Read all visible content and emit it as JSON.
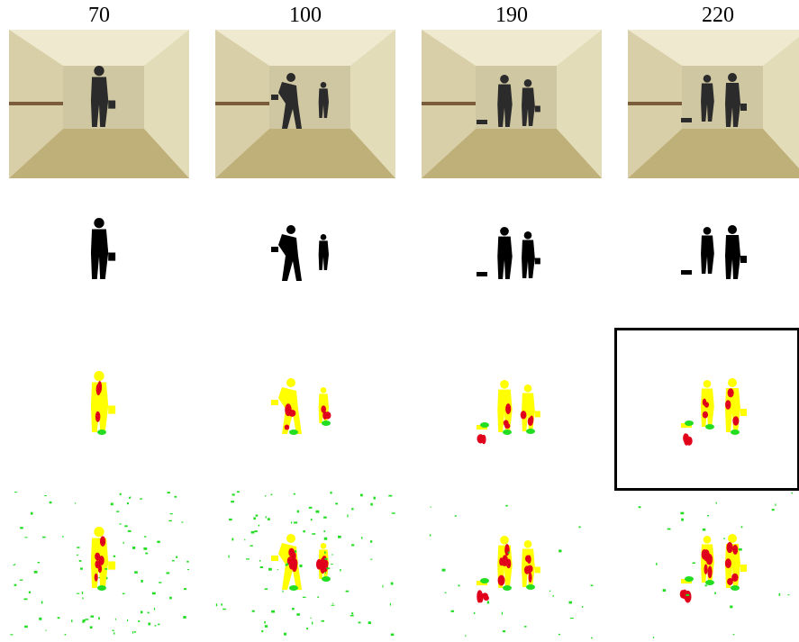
{
  "figure": {
    "frame_labels": [
      "70",
      "100",
      "190",
      "220"
    ],
    "rows": [
      {
        "id": "input-frames"
      },
      {
        "id": "ground-truth-masks"
      },
      {
        "id": "method-a-results"
      },
      {
        "id": "method-b-results"
      }
    ],
    "highlighted_cell": {
      "row": 2,
      "column": 3
    },
    "colors": {
      "wall": "#d8cfa8",
      "floor": "#bfb07a",
      "ceiling": "#efe9d0",
      "silhouette": "#000000",
      "correct": "#ffff00",
      "missed": "#e0001b",
      "false_positive": "#22dd22",
      "highlight_border": "#000000"
    }
  }
}
